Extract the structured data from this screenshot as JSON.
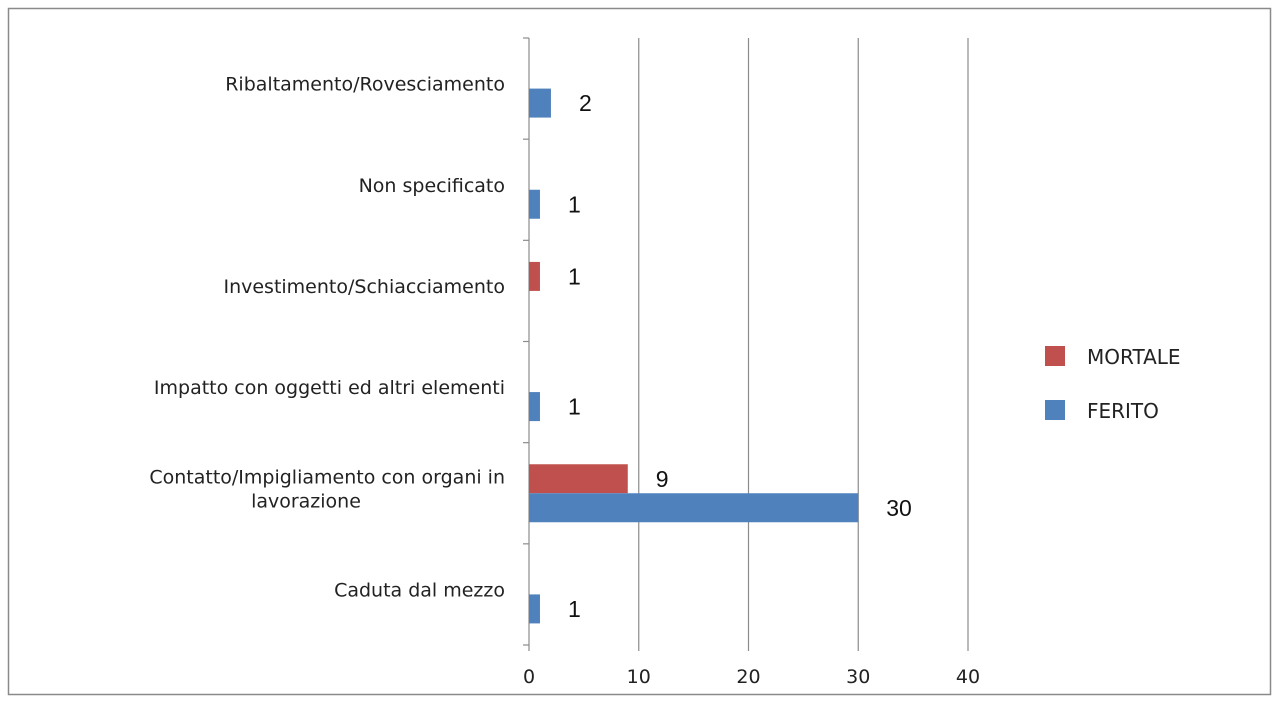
{
  "chart_data": {
    "type": "bar",
    "orientation": "horizontal",
    "categories": [
      [
        "Caduta dal mezzo"
      ],
      [
        "Contatto/Impigliamento con organi in",
        "lavorazione"
      ],
      [
        "Impatto con oggetti ed altri elementi"
      ],
      [
        "Investimento/Schiacciamento"
      ],
      [
        "Non specificato"
      ],
      [
        "Ribaltamento/Rovesciamento"
      ]
    ],
    "series": [
      {
        "name": "MORTALE",
        "color": "#C0504D",
        "values": [
          null,
          9,
          null,
          1,
          null,
          null
        ]
      },
      {
        "name": "FERITO",
        "color": "#4F81BD",
        "values": [
          1,
          30,
          1,
          null,
          1,
          2
        ]
      }
    ],
    "data_labels": [
      {
        "series": 0,
        "values": [
          "",
          "9",
          "",
          "1",
          "",
          ""
        ]
      },
      {
        "series": 1,
        "values": [
          "1",
          "30",
          "1",
          "",
          "1",
          "2"
        ]
      }
    ],
    "xlim": [
      0,
      40
    ],
    "xticks": [
      "0",
      "10",
      "20",
      "30",
      "40"
    ],
    "grid": "vertical",
    "legend": "right"
  }
}
